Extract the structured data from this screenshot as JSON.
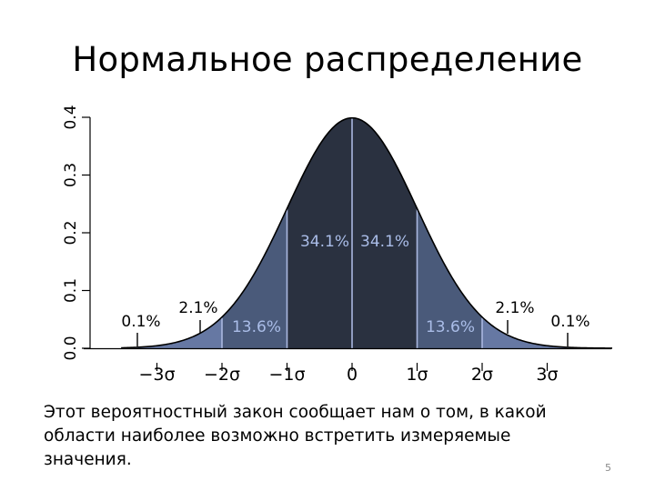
{
  "slide": {
    "title": "Нормальное распределение",
    "caption": "Этот вероятностный закон сообщает нам о том, в какой области наиболее возможно встретить измеряемые значения.",
    "page_number": "5"
  },
  "chart_data": {
    "type": "area",
    "title": "Нормальное распределение",
    "distribution": "standard normal",
    "mean": 0,
    "sd": 1,
    "xlim": [
      -3.55,
      4.0
    ],
    "ylim": [
      0,
      0.4
    ],
    "y_ticks": [
      0.0,
      0.1,
      0.2,
      0.3,
      0.4
    ],
    "y_tick_labels": [
      "0.0",
      "0.1",
      "0.2",
      "0.3",
      "0.4"
    ],
    "x_ticks": [
      -3,
      -2,
      -1,
      0,
      1,
      2,
      3
    ],
    "x_tick_labels": [
      "−3σ",
      "−2σ",
      "−1σ",
      "0",
      "1σ",
      "2σ",
      "3σ"
    ],
    "regions": [
      {
        "from": -1,
        "to": 0,
        "percent": "34.1%",
        "color": "#2a3140"
      },
      {
        "from": 0,
        "to": 1,
        "percent": "34.1%",
        "color": "#2a3140"
      },
      {
        "from": -2,
        "to": -1,
        "percent": "13.6%",
        "color": "#4a5a7a"
      },
      {
        "from": 1,
        "to": 2,
        "percent": "13.6%",
        "color": "#4a5a7a"
      },
      {
        "from": -3,
        "to": -2,
        "percent": "2.1%",
        "color": "#6678a3"
      },
      {
        "from": 2,
        "to": 3,
        "percent": "2.1%",
        "color": "#6678a3"
      },
      {
        "from": -4,
        "to": -3,
        "percent": "0.1%",
        "color": "#6678a3"
      },
      {
        "from": 3,
        "to": 4,
        "percent": "0.1%",
        "color": "#6678a3"
      }
    ],
    "region_label_colors": {
      "inner": "#aabde8",
      "outer": "#000000"
    },
    "divider_color": "#aab8e0",
    "grid": false,
    "legend": "none"
  }
}
